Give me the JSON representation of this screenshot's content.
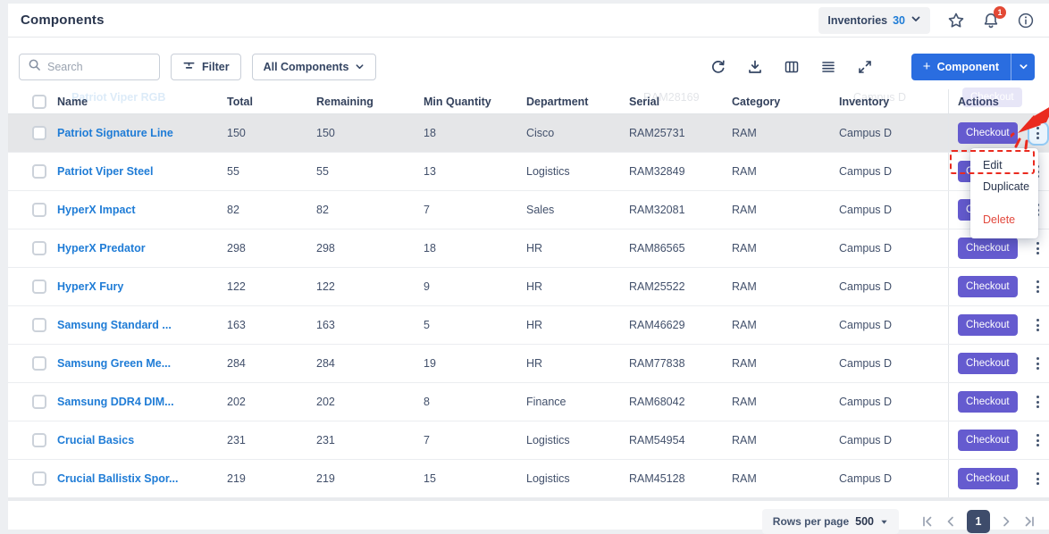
{
  "header": {
    "title": "Components",
    "inventories": {
      "label": "Inventories",
      "count": "30"
    },
    "notifications_badge": "1",
    "icons": [
      "star-icon",
      "bell-icon",
      "info-icon"
    ]
  },
  "toolbar": {
    "search": {
      "placeholder": "Search"
    },
    "filter_label": "Filter",
    "scope_dropdown": "All Components",
    "icons": [
      "refresh-icon",
      "download-icon",
      "columns-icon",
      "row-height-icon",
      "fullscreen-icon"
    ],
    "add_button": {
      "plus": "+",
      "label": "Component"
    }
  },
  "table": {
    "columns": [
      "Name",
      "Total",
      "Remaining",
      "Min Quantity",
      "Department",
      "Serial",
      "Category",
      "Inventory",
      "Actions"
    ],
    "checkout_label": "Checkout",
    "rows": [
      {
        "name": "Patriot Signature Line",
        "total": "150",
        "remaining": "150",
        "min_quantity": "18",
        "department": "Cisco",
        "serial": "RAM25731",
        "category": "RAM",
        "inventory": "Campus D",
        "highlighted": true,
        "menu_open": true
      },
      {
        "name": "Patriot Viper Steel",
        "total": "55",
        "remaining": "55",
        "min_quantity": "13",
        "department": "Logistics",
        "serial": "RAM32849",
        "category": "RAM",
        "inventory": "Campus D"
      },
      {
        "name": "HyperX Impact",
        "total": "82",
        "remaining": "82",
        "min_quantity": "7",
        "department": "Sales",
        "serial": "RAM32081",
        "category": "RAM",
        "inventory": "Campus D"
      },
      {
        "name": "HyperX Predator",
        "total": "298",
        "remaining": "298",
        "min_quantity": "18",
        "department": "HR",
        "serial": "RAM86565",
        "category": "RAM",
        "inventory": "Campus D"
      },
      {
        "name": "HyperX Fury",
        "total": "122",
        "remaining": "122",
        "min_quantity": "9",
        "department": "HR",
        "serial": "RAM25522",
        "category": "RAM",
        "inventory": "Campus D"
      },
      {
        "name": "Samsung Standard ...",
        "total": "163",
        "remaining": "163",
        "min_quantity": "5",
        "department": "HR",
        "serial": "RAM46629",
        "category": "RAM",
        "inventory": "Campus D"
      },
      {
        "name": "Samsung Green Me...",
        "total": "284",
        "remaining": "284",
        "min_quantity": "19",
        "department": "HR",
        "serial": "RAM77838",
        "category": "RAM",
        "inventory": "Campus D"
      },
      {
        "name": "Samsung DDR4 DIM...",
        "total": "202",
        "remaining": "202",
        "min_quantity": "8",
        "department": "Finance",
        "serial": "RAM68042",
        "category": "RAM",
        "inventory": "Campus D"
      },
      {
        "name": "Crucial Basics",
        "total": "231",
        "remaining": "231",
        "min_quantity": "7",
        "department": "Logistics",
        "serial": "RAM54954",
        "category": "RAM",
        "inventory": "Campus D"
      },
      {
        "name": "Crucial Ballistix Spor...",
        "total": "219",
        "remaining": "219",
        "min_quantity": "15",
        "department": "Logistics",
        "serial": "RAM45128",
        "category": "RAM",
        "inventory": "Campus D"
      }
    ]
  },
  "ghost_row": {
    "name": "Patriot Viper RGB",
    "serial": "RAM28169",
    "inventory": "Campus D",
    "action_label": "Checkout"
  },
  "context_menu": {
    "items": [
      {
        "label": "Edit",
        "danger": false,
        "annotated": true
      },
      {
        "label": "Duplicate",
        "danger": false
      },
      {
        "label": "Delete",
        "danger": true
      }
    ]
  },
  "pagination": {
    "rows_per_page_label": "Rows per page",
    "rows_per_page_value": "500",
    "page": "1"
  },
  "colors": {
    "accent": "#2a6de0",
    "link": "#1f7cd6",
    "checkout": "#655bcf",
    "danger": "#e2483d",
    "annotation": "#ea2a1f"
  }
}
